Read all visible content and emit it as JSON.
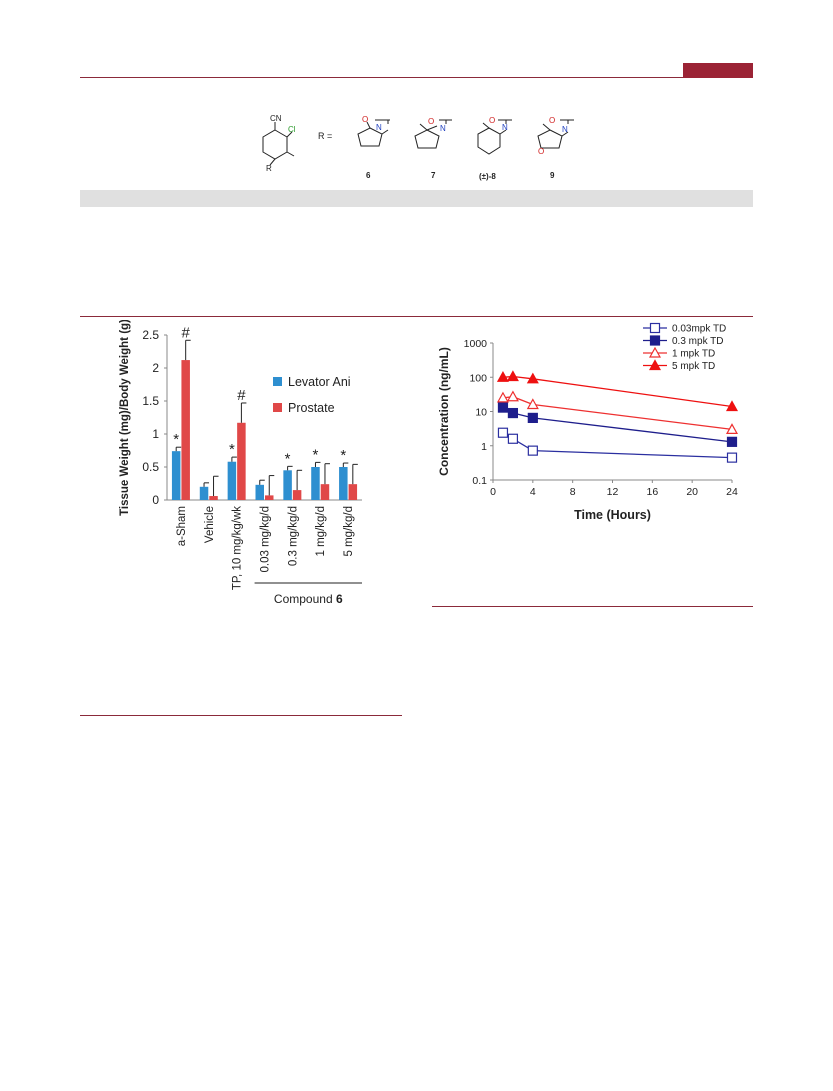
{
  "colors": {
    "accent": "#9b2335",
    "rule": "#8b2a3a",
    "band": "#e0e0e0"
  },
  "scheme": {
    "cn_label": "CN",
    "cl_label": "Cl",
    "r_label": "R",
    "r_equals": "R =",
    "labels": [
      "6",
      "7",
      "(±)-8",
      "9"
    ],
    "atom_o": "O",
    "atom_n": "N"
  },
  "chart_data": [
    {
      "type": "bar",
      "ylabel": "Tissue Weight (mg)/Body Weight (g)",
      "ylim": [
        0,
        2.5
      ],
      "yticks": [
        "0",
        "0.5",
        "1",
        "1.5",
        "2",
        "2.5"
      ],
      "categories": [
        "a-Sham",
        "Vehicle",
        "TP, 10 mg/kg/wk",
        "0.03 mg/kg/d",
        "0.3 mg/kg/d",
        "1 mg/kg/d",
        "5 mg/kg/d"
      ],
      "group_label_prefix": "Compound",
      "group_label_bold": "6",
      "legend_position": "right",
      "series": [
        {
          "name": "Levator Ani",
          "color": "#2e8fd0",
          "values": [
            0.74,
            0.2,
            0.58,
            0.23,
            0.45,
            0.5,
            0.5
          ],
          "errors": [
            0.06,
            0.06,
            0.07,
            0.07,
            0.06,
            0.07,
            0.06
          ],
          "marks": [
            "*",
            "",
            "*",
            "",
            "*",
            "*",
            "*"
          ]
        },
        {
          "name": "Prostate",
          "color": "#e04848",
          "values": [
            2.12,
            0.06,
            1.17,
            0.07,
            0.15,
            0.24,
            0.24
          ],
          "errors": [
            0.3,
            0.3,
            0.3,
            0.3,
            0.3,
            0.31,
            0.3
          ],
          "marks": [
            "#",
            "",
            "#",
            "",
            "",
            "",
            ""
          ]
        }
      ]
    },
    {
      "type": "line",
      "xlabel": "Time (Hours)",
      "ylabel": "Concentration (ng/mL)",
      "yscale": "log",
      "xlim": [
        0,
        24
      ],
      "ylim": [
        0.1,
        1000
      ],
      "xticks": [
        "0",
        "4",
        "8",
        "12",
        "16",
        "20",
        "24"
      ],
      "yticks": [
        "0.1",
        "1",
        "10",
        "100",
        "1000"
      ],
      "legend_position": "top-right",
      "series": [
        {
          "name": "0.03mpk TD",
          "color": "#2b2fa0",
          "marker": "square-open",
          "x": [
            1,
            2,
            4,
            24
          ],
          "y": [
            2.4,
            1.6,
            0.72,
            0.45
          ]
        },
        {
          "name": "0.3 mpk TD",
          "color": "#1e1e8c",
          "marker": "square-filled",
          "x": [
            1,
            2,
            4,
            24
          ],
          "y": [
            13,
            9,
            6.5,
            1.3
          ]
        },
        {
          "name": "1 mpk TD",
          "color": "#ee3030",
          "marker": "triangle-open",
          "x": [
            1,
            2,
            4,
            24
          ],
          "y": [
            25,
            27,
            16,
            3.0
          ]
        },
        {
          "name": "5 mpk TD",
          "color": "#ee1010",
          "marker": "triangle-filled",
          "x": [
            1,
            2,
            4,
            24
          ],
          "y": [
            100,
            105,
            90,
            14
          ]
        }
      ]
    }
  ]
}
